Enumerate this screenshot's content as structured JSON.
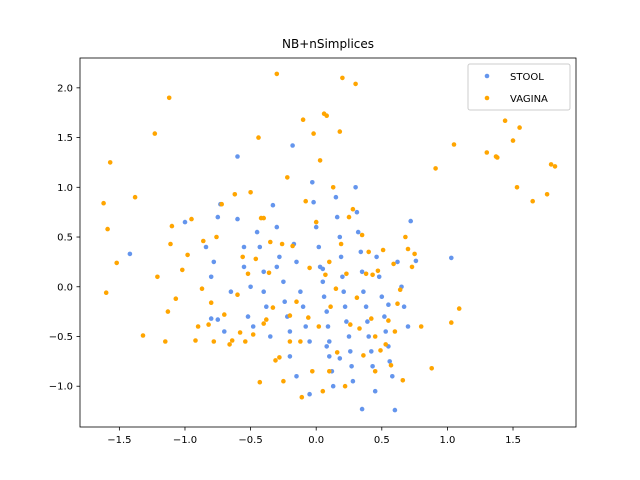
{
  "chart_data": {
    "type": "scatter",
    "title": "NB+nSimplices",
    "xlabel": "",
    "ylabel": "",
    "xlim": [
      -1.8,
      1.98
    ],
    "ylim": [
      -1.41,
      2.3
    ],
    "xticks": [
      -1.5,
      -1.0,
      -0.5,
      0.0,
      0.5,
      1.0,
      1.5
    ],
    "xtick_labels": [
      "−1.5",
      "−1.0",
      "−0.5",
      "0.0",
      "0.5",
      "1.0",
      "1.5"
    ],
    "yticks": [
      -1.0,
      -0.5,
      0.0,
      0.5,
      1.0,
      1.5,
      2.0
    ],
    "ytick_labels": [
      "−1.0",
      "−0.5",
      "0.0",
      "0.5",
      "1.0",
      "1.5",
      "2.0"
    ],
    "grid": false,
    "legend_position": "top-right",
    "series": [
      {
        "name": "STOOL",
        "color": "#6495ed",
        "points": [
          [
            -1.42,
            0.33
          ],
          [
            -1.0,
            0.65
          ],
          [
            -0.84,
            0.4
          ],
          [
            -0.8,
            0.1
          ],
          [
            -0.78,
            0.25
          ],
          [
            -0.75,
            0.7
          ],
          [
            -0.73,
            0.83
          ],
          [
            -0.8,
            -0.32
          ],
          [
            -0.75,
            -0.33
          ],
          [
            -0.7,
            -0.45
          ],
          [
            -0.6,
            1.31
          ],
          [
            -0.6,
            0.68
          ],
          [
            -0.55,
            0.4
          ],
          [
            -0.55,
            0.2
          ],
          [
            -0.5,
            0.0
          ],
          [
            -0.52,
            -0.3
          ],
          [
            -0.48,
            -0.4
          ],
          [
            -0.45,
            0.55
          ],
          [
            -0.43,
            0.4
          ],
          [
            -0.4,
            0.15
          ],
          [
            -0.4,
            -0.05
          ],
          [
            -0.38,
            -0.2
          ],
          [
            -0.35,
            -0.5
          ],
          [
            -0.33,
            0.82
          ],
          [
            -0.3,
            0.6
          ],
          [
            -0.28,
            0.3
          ],
          [
            -0.25,
            0.05
          ],
          [
            -0.24,
            -0.15
          ],
          [
            -0.22,
            -0.3
          ],
          [
            -0.2,
            -0.45
          ],
          [
            -0.18,
            1.42
          ],
          [
            -0.17,
            0.43
          ],
          [
            -0.15,
            0.25
          ],
          [
            -0.12,
            -0.05
          ],
          [
            -0.1,
            -0.2
          ],
          [
            -0.08,
            -0.4
          ],
          [
            -0.05,
            -0.55
          ],
          [
            -0.03,
            1.05
          ],
          [
            -0.02,
            0.85
          ],
          [
            0.0,
            0.6
          ],
          [
            0.02,
            0.4
          ],
          [
            0.03,
            0.2
          ],
          [
            0.05,
            0.05
          ],
          [
            0.06,
            -0.1
          ],
          [
            0.08,
            -0.25
          ],
          [
            0.09,
            -0.4
          ],
          [
            0.1,
            -0.55
          ],
          [
            0.1,
            -0.7
          ],
          [
            0.12,
            -0.85
          ],
          [
            0.13,
            -1.0
          ],
          [
            0.15,
            0.9
          ],
          [
            0.16,
            0.7
          ],
          [
            0.18,
            0.5
          ],
          [
            0.19,
            0.3
          ],
          [
            0.2,
            0.1
          ],
          [
            0.21,
            -0.05
          ],
          [
            0.22,
            -0.2
          ],
          [
            0.23,
            -0.35
          ],
          [
            0.25,
            -0.5
          ],
          [
            0.26,
            -0.65
          ],
          [
            0.27,
            -0.8
          ],
          [
            0.28,
            -0.95
          ],
          [
            0.3,
            1.0
          ],
          [
            0.31,
            0.75
          ],
          [
            0.32,
            0.55
          ],
          [
            0.34,
            0.35
          ],
          [
            0.35,
            0.15
          ],
          [
            0.36,
            -0.05
          ],
          [
            0.38,
            -0.2
          ],
          [
            0.39,
            -0.35
          ],
          [
            0.4,
            -0.5
          ],
          [
            0.42,
            -0.65
          ],
          [
            0.43,
            -0.8
          ],
          [
            0.45,
            -1.05
          ],
          [
            0.46,
            0.3
          ],
          [
            0.48,
            0.1
          ],
          [
            0.5,
            -0.1
          ],
          [
            0.52,
            -0.3
          ],
          [
            0.53,
            -0.45
          ],
          [
            0.55,
            -0.6
          ],
          [
            0.56,
            -0.75
          ],
          [
            0.58,
            -0.9
          ],
          [
            0.6,
            -1.24
          ],
          [
            0.62,
            0.25
          ],
          [
            0.65,
            0.0
          ],
          [
            0.67,
            -0.2
          ],
          [
            0.7,
            -0.4
          ],
          [
            0.72,
            0.66
          ],
          [
            0.76,
            0.26
          ],
          [
            1.03,
            0.29
          ],
          [
            0.35,
            -1.23
          ],
          [
            -0.2,
            -0.7
          ],
          [
            -0.15,
            -0.9
          ],
          [
            -0.05,
            -1.08
          ],
          [
            0.08,
            -0.6
          ],
          [
            0.18,
            -0.72
          ],
          [
            -0.3,
            0.2
          ],
          [
            0.55,
            -0.18
          ],
          [
            -0.65,
            -0.05
          ],
          [
            0.05,
            0.18
          ]
        ]
      },
      {
        "name": "VAGINA",
        "color": "#ffa500",
        "points": [
          [
            -1.62,
            0.84
          ],
          [
            -1.6,
            -0.06
          ],
          [
            -1.59,
            0.58
          ],
          [
            -1.57,
            1.25
          ],
          [
            -1.52,
            0.24
          ],
          [
            -1.38,
            0.9
          ],
          [
            -1.32,
            -0.49
          ],
          [
            -1.23,
            1.54
          ],
          [
            -1.21,
            0.1
          ],
          [
            -1.15,
            -0.55
          ],
          [
            -1.13,
            -0.25
          ],
          [
            -1.12,
            1.9
          ],
          [
            -1.11,
            0.43
          ],
          [
            -1.1,
            0.61
          ],
          [
            -1.07,
            -0.12
          ],
          [
            -1.02,
            0.17
          ],
          [
            -0.98,
            0.32
          ],
          [
            -0.95,
            0.68
          ],
          [
            -0.92,
            -0.54
          ],
          [
            -0.87,
            -0.02
          ],
          [
            -0.86,
            0.46
          ],
          [
            -0.82,
            -0.38
          ],
          [
            -0.8,
            -0.16
          ],
          [
            -0.78,
            -0.55
          ],
          [
            -0.76,
            0.5
          ],
          [
            -0.72,
            0.83
          ],
          [
            -0.7,
            -0.28
          ],
          [
            -0.66,
            -0.58
          ],
          [
            -0.64,
            -0.54
          ],
          [
            -0.62,
            0.93
          ],
          [
            -0.6,
            -0.08
          ],
          [
            -0.58,
            -0.46
          ],
          [
            -0.56,
            0.3
          ],
          [
            -0.54,
            -0.55
          ],
          [
            -0.52,
            0.13
          ],
          [
            -0.5,
            0.95
          ],
          [
            -0.48,
            -0.48
          ],
          [
            -0.46,
            0.28
          ],
          [
            -0.44,
            1.5
          ],
          [
            -0.43,
            -0.96
          ],
          [
            -0.42,
            0.69
          ],
          [
            -0.4,
            0.69
          ],
          [
            -0.4,
            -0.37
          ],
          [
            -0.38,
            -0.33
          ],
          [
            -0.36,
            0.14
          ],
          [
            -0.33,
            -0.21
          ],
          [
            -0.31,
            -0.74
          ],
          [
            -0.3,
            2.14
          ],
          [
            -0.28,
            -0.71
          ],
          [
            -0.26,
            0.43
          ],
          [
            -0.25,
            -0.95
          ],
          [
            -0.22,
            1.1
          ],
          [
            -0.2,
            -0.29
          ],
          [
            -0.18,
            0.41
          ],
          [
            -0.15,
            -0.15
          ],
          [
            -0.12,
            -0.55
          ],
          [
            -0.11,
            -1.11
          ],
          [
            -0.1,
            1.68
          ],
          [
            -0.08,
            0.86
          ],
          [
            -0.06,
            -0.31
          ],
          [
            -0.05,
            0.19
          ],
          [
            -0.03,
            -0.85
          ],
          [
            -0.02,
            1.54
          ],
          [
            0.0,
            0.65
          ],
          [
            0.02,
            -0.4
          ],
          [
            0.03,
            1.27
          ],
          [
            0.05,
            -1.05
          ],
          [
            0.06,
            1.74
          ],
          [
            0.07,
            0.12
          ],
          [
            0.08,
            1.72
          ],
          [
            0.1,
            -0.85
          ],
          [
            0.11,
            -0.2
          ],
          [
            0.13,
            1.0
          ],
          [
            0.15,
            -0.02
          ],
          [
            0.16,
            -0.66
          ],
          [
            0.18,
            1.56
          ],
          [
            0.19,
            0.43
          ],
          [
            0.2,
            2.1
          ],
          [
            0.22,
            -1.0
          ],
          [
            0.23,
            0.13
          ],
          [
            0.25,
            0.7
          ],
          [
            0.26,
            -0.38
          ],
          [
            0.28,
            0.78
          ],
          [
            0.3,
            2.04
          ],
          [
            0.31,
            -0.11
          ],
          [
            0.33,
            -0.42
          ],
          [
            0.35,
            0.52
          ],
          [
            0.36,
            -0.69
          ],
          [
            0.38,
            0.13
          ],
          [
            0.4,
            0.35
          ],
          [
            0.42,
            -0.32
          ],
          [
            0.43,
            0.12
          ],
          [
            0.45,
            -0.85
          ],
          [
            0.47,
            0.16
          ],
          [
            0.49,
            -0.64
          ],
          [
            0.51,
            0.37
          ],
          [
            0.53,
            -0.58
          ],
          [
            0.55,
            -0.34
          ],
          [
            0.57,
            -0.79
          ],
          [
            0.59,
            0.23
          ],
          [
            0.62,
            -0.17
          ],
          [
            0.64,
            -0.03
          ],
          [
            0.66,
            -0.94
          ],
          [
            0.68,
            0.5
          ],
          [
            0.7,
            0.38
          ],
          [
            0.73,
            0.2
          ],
          [
            0.75,
            0.33
          ],
          [
            0.8,
            -0.4
          ],
          [
            0.88,
            -0.82
          ],
          [
            0.91,
            1.19
          ],
          [
            1.03,
            -0.36
          ],
          [
            1.05,
            1.43
          ],
          [
            1.09,
            -0.22
          ],
          [
            1.3,
            1.35
          ],
          [
            1.37,
            1.31
          ],
          [
            1.38,
            1.3
          ],
          [
            1.44,
            1.67
          ],
          [
            1.5,
            1.47
          ],
          [
            1.53,
            1.0
          ],
          [
            1.55,
            1.6
          ],
          [
            1.65,
            0.86
          ],
          [
            1.76,
            0.93
          ],
          [
            1.79,
            1.23
          ],
          [
            1.82,
            1.21
          ],
          [
            -0.9,
            -0.4
          ],
          [
            0.6,
            -0.45
          ],
          [
            -0.35,
            0.45
          ],
          [
            0.1,
            0.25
          ],
          [
            0.45,
            -0.5
          ],
          [
            -0.2,
            -0.55
          ]
        ]
      }
    ]
  }
}
